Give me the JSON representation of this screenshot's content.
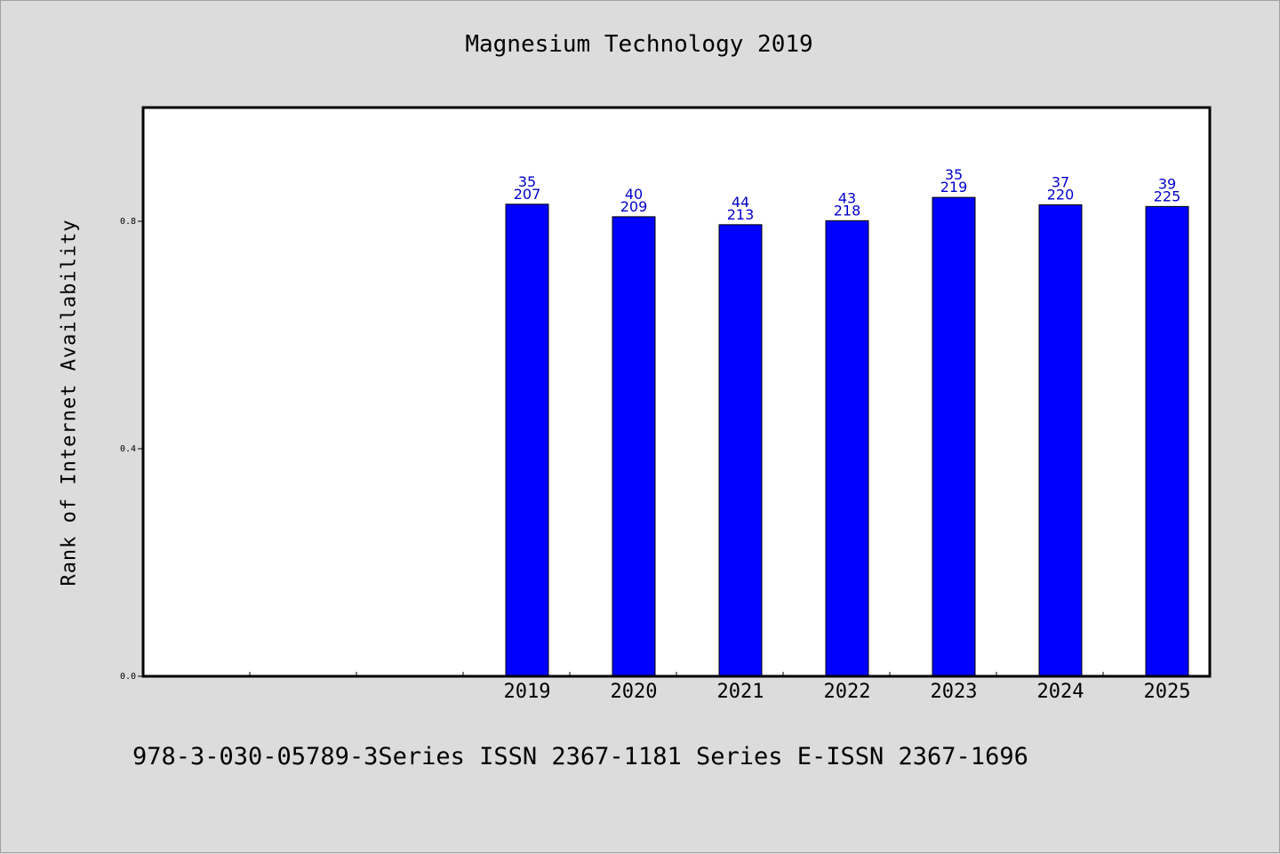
{
  "chart_data": {
    "type": "bar",
    "title": "Magnesium Technology 2019",
    "ylabel": "Rank of Internet Availability",
    "xlabel": "",
    "categories": [
      "",
      "",
      "",
      "2019",
      "2020",
      "2021",
      "2022",
      "2023",
      "2024",
      "2025"
    ],
    "values": [
      null,
      null,
      null,
      0.83,
      0.808,
      0.794,
      0.801,
      0.842,
      0.829,
      0.826
    ],
    "bar_labels_top": [
      "",
      "",
      "",
      "35",
      "40",
      "44",
      "43",
      "35",
      "37",
      "39"
    ],
    "bar_labels_bottom": [
      "",
      "",
      "",
      "207",
      "209",
      "213",
      "218",
      "219",
      "220",
      "225"
    ],
    "ylim": [
      0,
      1.0
    ],
    "yticks": [
      0.0,
      0.4,
      0.8
    ],
    "ytick_labels": [
      "0.0",
      "0.4",
      "0.8"
    ],
    "grid": false,
    "bar_color": "#0000ff",
    "label_color": "#0000cc"
  },
  "footer": {
    "text": "978-3-030-05789-3Series ISSN 2367-1181 Series E-ISSN 2367-1696"
  }
}
